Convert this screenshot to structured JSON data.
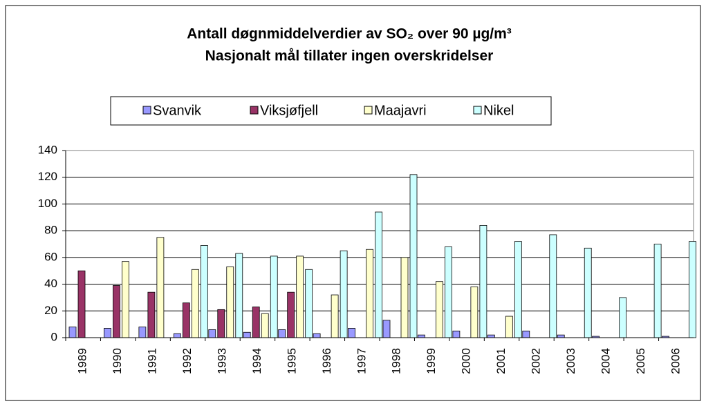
{
  "chart_data": {
    "type": "bar",
    "title": "Antall døgnmiddelverdier av SO₂ over 90 µg/m³",
    "subtitle": "Nasjonalt mål tillater ingen overskridelser",
    "categories": [
      "1989",
      "1990",
      "1991",
      "1992",
      "1993",
      "1994",
      "1995",
      "1996",
      "1997",
      "1998",
      "1999",
      "2000",
      "2001",
      "2002",
      "2003",
      "2004",
      "2005",
      "2006"
    ],
    "series": [
      {
        "name": "Svanvik",
        "color": "#9999ff",
        "values": [
          8,
          7,
          8,
          3,
          6,
          4,
          6,
          3,
          7,
          13,
          2,
          5,
          2,
          5,
          2,
          1,
          0,
          1
        ]
      },
      {
        "name": "Viksjøfjell",
        "color": "#993366",
        "values": [
          50,
          39,
          34,
          26,
          21,
          23,
          34,
          0,
          0,
          0,
          0,
          0,
          0,
          0,
          0,
          0,
          0,
          0
        ]
      },
      {
        "name": "Maajavri",
        "color": "#ffffcc",
        "values": [
          null,
          57,
          75,
          51,
          53,
          18,
          61,
          32,
          66,
          60,
          42,
          38,
          16,
          0,
          0,
          0,
          0,
          0
        ]
      },
      {
        "name": "Nikel",
        "color": "#ccffff",
        "values": [
          null,
          null,
          null,
          69,
          63,
          61,
          51,
          65,
          94,
          122,
          68,
          84,
          72,
          77,
          67,
          30,
          70,
          72
        ]
      }
    ],
    "ylim": [
      0,
      140
    ],
    "yticks": [
      0,
      20,
      40,
      60,
      80,
      100,
      120,
      140
    ],
    "grid": true,
    "legend": "top"
  }
}
